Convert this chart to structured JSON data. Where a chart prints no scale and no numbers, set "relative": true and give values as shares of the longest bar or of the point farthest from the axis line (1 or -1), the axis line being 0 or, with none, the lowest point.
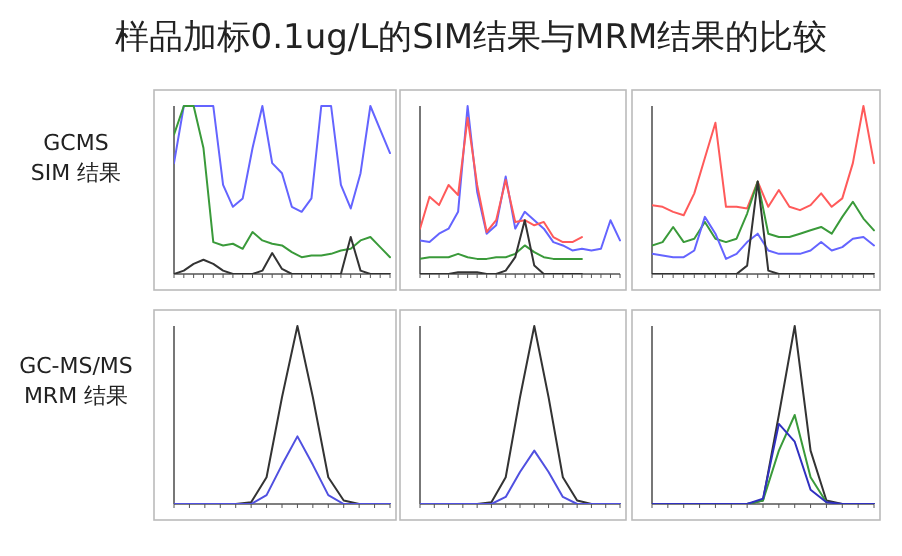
{
  "chart_data": [
    {
      "type": "other",
      "title": "样品加标0.1ug/L的SIM结果与MRM结果的比较"
    },
    {
      "type": "line",
      "relative": true,
      "ylabel": "GCMS SIM 结果",
      "categories": [
        null,
        null,
        null,
        null,
        null,
        null,
        null,
        null,
        null,
        null,
        null,
        null,
        null,
        null,
        null,
        null,
        null,
        null,
        null,
        null,
        null,
        null,
        null
      ],
      "series": [
        {
          "color": "#6464ff",
          "values": [
            0.66,
            1,
            1,
            1,
            1,
            0.53,
            0.4,
            0.45,
            0.75,
            1,
            0.66,
            0.6,
            0.4,
            0.37,
            0.45,
            1,
            1,
            0.53,
            0.39,
            0.6,
            1,
            0.86,
            0.72
          ]
        },
        {
          "color": "#3a9a3a",
          "values": [
            0.83,
            1,
            1,
            0.75,
            0.19,
            0.17,
            0.18,
            0.15,
            0.25,
            0.2,
            0.18,
            0.17,
            0.13,
            0.1,
            0.11,
            0.11,
            0.12,
            0.14,
            0.15,
            0.2,
            0.22,
            0.16,
            0.1
          ]
        },
        {
          "color": "#333333",
          "values": [
            0,
            0.02,
            0.06,
            0.085,
            0.06,
            0.02,
            0,
            0,
            0,
            0.02,
            0.125,
            0.03,
            0,
            0,
            0,
            0,
            0,
            0,
            0.22,
            0.02,
            0,
            0,
            0
          ]
        }
      ]
    },
    {
      "type": "line",
      "relative": true,
      "categories": [
        null,
        null,
        null,
        null,
        null,
        null,
        null,
        null,
        null,
        null,
        null,
        null,
        null,
        null,
        null,
        null,
        null,
        null,
        null,
        null,
        null,
        null
      ],
      "series": [
        {
          "color": "#6464ff",
          "values": [
            0.2,
            0.19,
            0.24,
            0.27,
            0.37,
            1,
            0.49,
            0.24,
            0.29,
            0.58,
            0.27,
            0.37,
            0.32,
            0.27,
            0.19,
            0.17,
            0.14,
            0.15,
            0.14,
            0.15,
            0.32,
            0.2
          ]
        },
        {
          "color": "#ff5a5a",
          "values": [
            0.27,
            0.46,
            0.41,
            0.53,
            0.47,
            0.93,
            0.53,
            0.25,
            0.32,
            0.56,
            0.31,
            0.32,
            0.29,
            0.31,
            0.22,
            0.19,
            0.19,
            0.22,
            null,
            null,
            null,
            null
          ]
        },
        {
          "color": "#3a9a3a",
          "values": [
            0.09,
            0.1,
            0.1,
            0.1,
            0.12,
            0.1,
            0.09,
            0.09,
            0.1,
            0.1,
            0.12,
            0.17,
            0.13,
            0.1,
            0.09,
            0.09,
            0.09,
            0.09,
            null,
            null,
            null,
            null
          ]
        },
        {
          "color": "#333333",
          "values": [
            0,
            0,
            0,
            0,
            0.01,
            0.01,
            0.01,
            0,
            0,
            0.02,
            0.1,
            0.32,
            0.05,
            0,
            0,
            0,
            0,
            0,
            null,
            null,
            null,
            null
          ]
        }
      ]
    },
    {
      "type": "line",
      "relative": true,
      "categories": [
        null,
        null,
        null,
        null,
        null,
        null,
        null,
        null,
        null,
        null,
        null,
        null,
        null,
        null,
        null,
        null,
        null,
        null,
        null,
        null,
        null,
        null
      ],
      "series": [
        {
          "color": "#ff5a5a",
          "values": [
            0.41,
            0.4,
            0.37,
            0.35,
            0.48,
            0.69,
            0.9,
            0.4,
            0.4,
            0.39,
            0.55,
            0.4,
            0.5,
            0.4,
            0.38,
            0.41,
            0.48,
            0.4,
            0.45,
            0.66,
            1,
            0.66
          ]
        },
        {
          "color": "#3a9a3a",
          "values": [
            0.17,
            0.19,
            0.28,
            0.19,
            0.21,
            0.31,
            0.21,
            0.19,
            0.21,
            0.36,
            0.55,
            0.24,
            0.22,
            0.22,
            0.24,
            0.26,
            0.28,
            0.24,
            0.34,
            0.43,
            0.33,
            0.26
          ]
        },
        {
          "color": "#6464ff",
          "values": [
            0.12,
            0.11,
            0.1,
            0.1,
            0.14,
            0.34,
            0.24,
            0.09,
            0.12,
            0.19,
            0.24,
            0.14,
            0.12,
            0.12,
            0.12,
            0.14,
            0.19,
            0.14,
            0.16,
            0.21,
            0.22,
            0.17
          ]
        },
        {
          "color": "#333333",
          "values": [
            0,
            0,
            0,
            0,
            0,
            0,
            0,
            0,
            0,
            0.05,
            0.55,
            0.02,
            0,
            0,
            0,
            0,
            0,
            0,
            0,
            0,
            0,
            0
          ]
        }
      ]
    },
    {
      "type": "line",
      "relative": true,
      "ylabel": "GC-MS/MS MRM 结果",
      "categories": [
        null,
        null,
        null,
        null,
        null,
        null,
        null,
        null,
        null,
        null,
        null,
        null,
        null,
        null,
        null
      ],
      "series": [
        {
          "color": "#333333",
          "values": [
            0,
            0,
            0,
            0,
            0,
            0.01,
            0.15,
            0.6,
            1,
            0.6,
            0.15,
            0.02,
            0,
            0,
            0
          ]
        },
        {
          "color": "#5050e0",
          "values": [
            0,
            0,
            0,
            0,
            0,
            0,
            0.05,
            0.22,
            0.38,
            0.22,
            0.05,
            0,
            0,
            0,
            0
          ]
        }
      ]
    },
    {
      "type": "line",
      "relative": true,
      "categories": [
        null,
        null,
        null,
        null,
        null,
        null,
        null,
        null,
        null,
        null,
        null,
        null,
        null,
        null,
        null
      ],
      "series": [
        {
          "color": "#333333",
          "values": [
            0,
            0,
            0,
            0,
            0,
            0.01,
            0.15,
            0.6,
            1,
            0.6,
            0.15,
            0.02,
            0,
            0,
            0
          ]
        },
        {
          "color": "#5050e0",
          "values": [
            0,
            0,
            0,
            0,
            0,
            0,
            0.04,
            0.18,
            0.3,
            0.18,
            0.04,
            0,
            0,
            0,
            0
          ]
        }
      ]
    },
    {
      "type": "line",
      "relative": true,
      "categories": [
        null,
        null,
        null,
        null,
        null,
        null,
        null,
        null,
        null,
        null,
        null,
        null,
        null,
        null,
        null
      ],
      "series": [
        {
          "color": "#333333",
          "values": [
            0,
            0,
            0,
            0,
            0,
            0,
            0,
            0.02,
            0.5,
            1,
            0.3,
            0.02,
            0,
            0,
            0
          ]
        },
        {
          "color": "#3a9a3a",
          "values": [
            null,
            null,
            null,
            null,
            null,
            null,
            0,
            0.02,
            0.3,
            0.5,
            0.15,
            0.01,
            null,
            null,
            null
          ]
        },
        {
          "color": "#3030c0",
          "values": [
            0,
            0,
            0,
            0,
            0,
            0,
            0,
            0.03,
            0.45,
            0.35,
            0.08,
            0.01,
            0,
            0,
            0
          ]
        }
      ]
    }
  ]
}
